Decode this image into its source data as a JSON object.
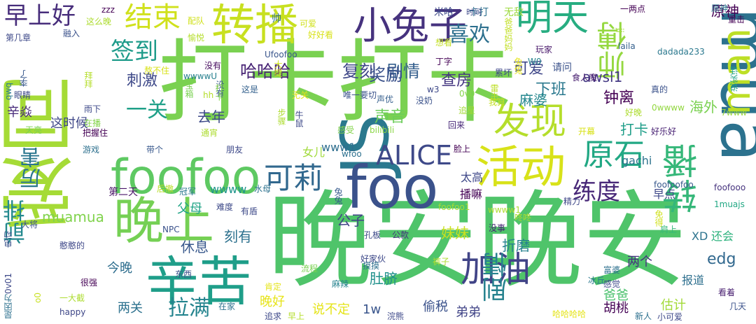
{
  "words": [
    {
      "text": "晚安晚安",
      "color": "#4fc46a"
    },
    {
      "text": "打卡打卡",
      "color": "#7ad151"
    },
    {
      "text": "爱同",
      "color": "#a5db36"
    },
    {
      "text": "JS",
      "color": "#2a788e"
    },
    {
      "text": "mua",
      "color": "#2c728e"
    },
    {
      "text": "foofoo",
      "color": "#5ec962"
    },
    {
      "text": "foo",
      "color": "#3b528b"
    },
    {
      "text": "辛苦",
      "color": "#1f9e89"
    },
    {
      "text": "转播",
      "color": "#c8e020"
    },
    {
      "text": "小兔子",
      "color": "#46327e"
    },
    {
      "text": "活动",
      "color": "#d8e219"
    },
    {
      "text": "晚上",
      "color": "#75d054"
    },
    {
      "text": "man",
      "color": "#bddf26"
    },
    {
      "text": "转播",
      "color": "#35b779"
    },
    {
      "text": "明天",
      "color": "#27ad81"
    },
    {
      "text": "原石",
      "color": "#22a884"
    },
    {
      "text": "ALICE",
      "color": "#3e4989"
    },
    {
      "text": "发现",
      "color": "#b5de2b"
    },
    {
      "text": "加油",
      "color": "#414487"
    },
    {
      "text": "可莉",
      "color": "#31688e"
    },
    {
      "text": "结束",
      "color": "#d0e11c"
    },
    {
      "text": "师傅",
      "color": "#95d840"
    },
    {
      "text": "剧情",
      "color": "#26828e"
    },
    {
      "text": "练度",
      "color": "#482878"
    },
    {
      "text": "签到",
      "color": "#1e9b8a"
    },
    {
      "text": "喜欢",
      "color": "#2d708e"
    },
    {
      "text": "早上好",
      "color": "#472d7b"
    },
    {
      "text": "前排",
      "color": "#23898e"
    },
    {
      "text": "厉害",
      "color": "#2a768e"
    },
    {
      "text": "一关",
      "color": "#1fa088"
    },
    {
      "text": "复刻",
      "color": "#3f4788"
    },
    {
      "text": "剧情",
      "color": "#355f8d"
    },
    {
      "text": "哈哈哈",
      "color": "#482475"
    },
    {
      "text": "奖励",
      "color": "#3b528b"
    },
    {
      "text": "muamua",
      "color": "#81d34d"
    },
    {
      "text": "拉满",
      "color": "#25848e"
    },
    {
      "text": "下班",
      "color": "#2a788e"
    },
    {
      "text": "可爱",
      "color": "#3f4788"
    },
    {
      "text": "钟离",
      "color": "#440154"
    },
    {
      "text": "awsl1",
      "color": "#443983"
    },
    {
      "text": "查房",
      "color": "#453781"
    },
    {
      "text": "麻婆",
      "color": "#24878e"
    },
    {
      "text": "声音",
      "color": "#6ccd5a"
    },
    {
      "text": "刺激",
      "color": "#3e4989"
    },
    {
      "text": "原神",
      "color": "#440154"
    },
    {
      "text": "打卡",
      "color": "#1f9e89"
    },
    {
      "text": "海外",
      "color": "#7ad151"
    },
    {
      "text": "edg",
      "color": "#31688e"
    },
    {
      "text": "去年",
      "color": "#3e4a89"
    },
    {
      "text": "这时候",
      "color": "#3f4788"
    },
    {
      "text": "辛焱",
      "color": "#472a7a"
    },
    {
      "text": "刻有",
      "color": "#2d718e"
    },
    {
      "text": "休息",
      "color": "#38588c"
    },
    {
      "text": "父母",
      "color": "#20a486"
    },
    {
      "text": "公子",
      "color": "#414487"
    },
    {
      "text": "妹妹",
      "color": "#c8e020"
    },
    {
      "text": "折磨",
      "color": "#26828e"
    },
    {
      "text": "肚脐",
      "color": "#21918c"
    },
    {
      "text": "两个",
      "color": "#46317e"
    },
    {
      "text": "爸爸",
      "color": "#4ac16d"
    },
    {
      "text": "今晚",
      "color": "#2e6e8e"
    },
    {
      "text": "两关",
      "color": "#2c718e"
    },
    {
      "text": "估计",
      "color": "#a2da37"
    },
    {
      "text": "胡桃",
      "color": "#440154"
    },
    {
      "text": "弟弟",
      "color": "#414487"
    },
    {
      "text": "偷税",
      "color": "#3b528b"
    },
    {
      "text": "晚好",
      "color": "#e7e419"
    },
    {
      "text": "说不定",
      "color": "#e5e419"
    },
    {
      "text": "1w",
      "color": "#39558c"
    },
    {
      "text": "报道",
      "color": "#2e6f8e"
    },
    {
      "text": "XD",
      "color": "#2c738e"
    },
    {
      "text": "还会",
      "color": "#2db27d"
    },
    {
      "text": "女儿",
      "color": "#a0da39"
    },
    {
      "text": "www1",
      "color": "#2e6e8e"
    },
    {
      "text": "太高",
      "color": "#3f4889"
    },
    {
      "text": "播嘛",
      "color": "#440154"
    },
    {
      "text": "wwww",
      "color": "#1f958b"
    },
    {
      "text": "gachi",
      "color": "#2c738e"
    },
    {
      "text": "早点",
      "color": "#3f4889"
    },
    {
      "text": "第二天",
      "color": "#481467"
    },
    {
      "text": "帅",
      "color": "#2d708e"
    },
    {
      "text": "Ufoofoo",
      "color": "#39558c"
    },
    {
      "text": "米哈",
      "color": "#3e4a89"
    },
    {
      "text": "无敌",
      "color": "#9bd93c"
    },
    {
      "text": "卡打",
      "color": "#2d708e"
    },
    {
      "text": "请问",
      "color": "#3b528b"
    },
    {
      "text": "玩家",
      "color": "#48186a"
    },
    {
      "text": "W0",
      "color": "#26828e"
    },
    {
      "text": "时间",
      "color": "#3e4989"
    },
    {
      "text": "一两点",
      "color": "#440154"
    },
    {
      "text": "原神",
      "color": "#2a788e"
    },
    {
      "text": "重击",
      "color": "#440154"
    },
    {
      "text": "说实话",
      "color": "#1fa287"
    },
    {
      "text": "dadada233",
      "color": "#2a788e"
    },
    {
      "text": "laila",
      "color": "#35608d"
    },
    {
      "text": "jj",
      "color": "#a0da39"
    },
    {
      "text": "真的",
      "color": "#3b528b"
    },
    {
      "text": "食人魔",
      "color": "#481f70"
    },
    {
      "text": "雷击",
      "color": "#bddf26"
    },
    {
      "text": "累坏",
      "color": "#3f4889"
    },
    {
      "text": "兔兔",
      "color": "#e5e419"
    },
    {
      "text": "丁字",
      "color": "#440154"
    },
    {
      "text": "追星",
      "color": "#a2da37"
    },
    {
      "text": "0v0",
      "color": "#84d44b"
    },
    {
      "text": "w3",
      "color": "#3e4989"
    },
    {
      "text": "没奶",
      "color": "#3b528b"
    },
    {
      "text": "声优",
      "color": "#355f8d"
    },
    {
      "text": "我算",
      "color": "#c2df23"
    },
    {
      "text": "7www",
      "color": "#9bd93c"
    },
    {
      "text": "好乐好",
      "color": "#482173"
    },
    {
      "text": "开幕",
      "color": "#d8e219"
    },
    {
      "text": "0wwww",
      "color": "#93d741"
    },
    {
      "text": "好晚",
      "color": "#addc30"
    },
    {
      "text": "唯一要切",
      "color": "#3b528b"
    },
    {
      "text": "这是",
      "color": "#34618d"
    },
    {
      "text": "没有",
      "color": "#460b5e"
    },
    {
      "text": "wwwwU",
      "color": "#27808e"
    },
    {
      "text": "hh",
      "color": "#b5de2b"
    },
    {
      "text": "没有",
      "color": "#38588c"
    },
    {
      "text": "无关",
      "color": "#e5e419"
    },
    {
      "text": "感受",
      "color": "#84d44b"
    },
    {
      "text": "bilibili",
      "color": "#8bd646"
    },
    {
      "text": "回来",
      "color": "#482878"
    },
    {
      "text": "脸上",
      "color": "#440154"
    },
    {
      "text": "wfoo",
      "color": "#2d708e"
    },
    {
      "text": "朋友",
      "color": "#3e4989"
    },
    {
      "text": "水母",
      "color": "#2c728e"
    },
    {
      "text": "带个",
      "color": "#38588c"
    },
    {
      "text": "兔兔",
      "color": "#375a8c"
    },
    {
      "text": "foofoofoo",
      "color": "#38598c"
    },
    {
      "text": "foofooo",
      "color": "#46337e"
    },
    {
      "text": "1muajs",
      "color": "#22a884"
    },
    {
      "text": "精力",
      "color": "#3f4788"
    },
    {
      "text": "wwww1",
      "color": "#addc30"
    },
    {
      "text": "难度",
      "color": "#3e4a89"
    },
    {
      "text": "有盾",
      "color": "#3e4a89"
    },
    {
      "text": "后撤",
      "color": "#b8de29"
    },
    {
      "text": "冠军",
      "color": "#2a788e"
    },
    {
      "text": "foofoo1",
      "color": "#a5db36"
    },
    {
      "text": "咚咚",
      "color": "#addc30"
    },
    {
      "text": "没事",
      "color": "#482576"
    },
    {
      "text": "肩上",
      "color": "#35b779"
    },
    {
      "text": "免得",
      "color": "#d0e11c"
    },
    {
      "text": "公款",
      "color": "#46327e"
    },
    {
      "text": "孔板",
      "color": "#3e4a89"
    },
    {
      "text": "NPC",
      "color": "#3b528b"
    },
    {
      "text": "好家伙",
      "color": "#3e4989"
    },
    {
      "text": "裤子",
      "color": "#addc30"
    },
    {
      "text": "富婆",
      "color": "#2d708e"
    },
    {
      "text": "感觉",
      "color": "#3e4989"
    },
    {
      "text": "冰丘",
      "color": "#2a788e"
    },
    {
      "text": "看着",
      "color": "#481f70"
    },
    {
      "text": "东西",
      "color": "#3b528b"
    },
    {
      "text": "流程",
      "color": "#7ad151"
    },
    {
      "text": "摸摸",
      "color": "#2d708e"
    },
    {
      "text": "肯定",
      "color": "#e5e419"
    },
    {
      "text": "麻辣",
      "color": "#26828e"
    },
    {
      "text": "很强",
      "color": "#440154"
    },
    {
      "text": "一大截",
      "color": "#addc30"
    },
    {
      "text": "憨憨的",
      "color": "#3f4889"
    },
    {
      "text": "大将",
      "color": "#3b528b"
    },
    {
      "text": "电动",
      "color": "#3b528b"
    },
    {
      "text": "0v01",
      "color": "#3e4989"
    },
    {
      "text": "是因为",
      "color": "#2d708e"
    },
    {
      "text": "o0",
      "color": "#c8e020"
    },
    {
      "text": "happy",
      "color": "#3f4788"
    },
    {
      "text": "在家",
      "color": "#2d708e"
    },
    {
      "text": "追求",
      "color": "#3e4989"
    },
    {
      "text": "早上",
      "color": "#b5de2b"
    },
    {
      "text": "浣熊",
      "color": "#3e4989"
    },
    {
      "text": "哈哈哈哈",
      "color": "#e5e419"
    },
    {
      "text": "新人",
      "color": "#2d708e"
    },
    {
      "text": "小可爱",
      "color": "#3e4989"
    },
    {
      "text": "几天",
      "color": "#3b528b"
    },
    {
      "text": "游戏",
      "color": "#2d708e"
    },
    {
      "text": "天亮",
      "color": "#7ad151"
    },
    {
      "text": "把握住",
      "color": "#440154"
    },
    {
      "text": "通宵",
      "color": "#addc30"
    },
    {
      "text": "在播",
      "color": "#84d44b"
    },
    {
      "text": "雨下",
      "color": "#3e4989"
    },
    {
      "text": "拜拜",
      "color": "#b5de2b"
    },
    {
      "text": "宝箱",
      "color": "#7ad151"
    },
    {
      "text": "打卡",
      "color": "#84d44b"
    },
    {
      "text": "步骤",
      "color": "#addc30"
    },
    {
      "text": "牛鼠",
      "color": "#3e4989"
    },
    {
      "text": "眼睛",
      "color": "#3e4989"
    },
    {
      "text": "李了",
      "color": "#38588c"
    },
    {
      "text": "qwq",
      "color": "#2a788e"
    },
    {
      "text": "融入",
      "color": "#3b528b"
    },
    {
      "text": "第几章",
      "color": "#3e4989"
    },
    {
      "text": "这么晚",
      "color": "#addc30"
    },
    {
      "text": "配队",
      "color": "#d0e11c"
    },
    {
      "text": "zzz",
      "color": "#440154"
    },
    {
      "text": "愉悦",
      "color": "#b5de2b"
    },
    {
      "text": "好好看",
      "color": "#d8e219"
    },
    {
      "text": "熬不住",
      "color": "#d8e219"
    },
    {
      "text": "可爱",
      "color": "#d0e11c"
    },
    {
      "text": "想看",
      "color": "#c2df23"
    },
    {
      "text": "爸爸妈妈",
      "color": "#c2df23"
    },
    {
      "text": "大提",
      "color": "#d0e11c"
    }
  ]
}
